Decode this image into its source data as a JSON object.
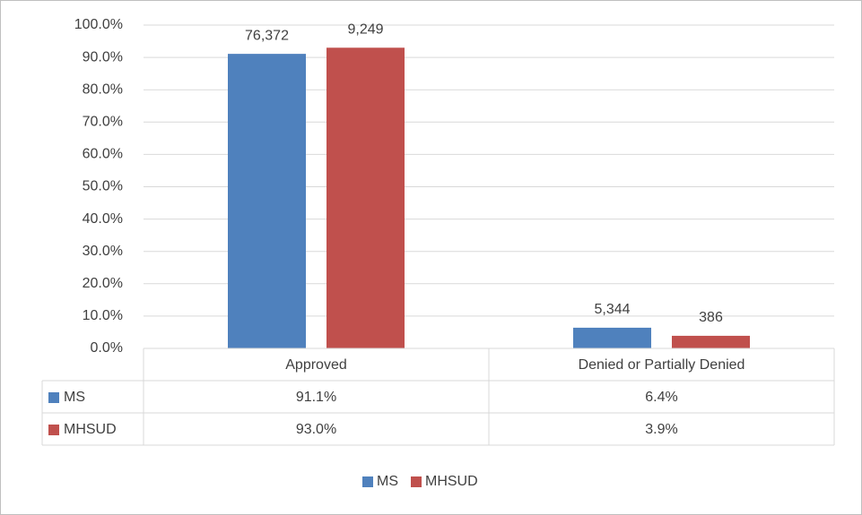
{
  "chart_data": {
    "type": "bar",
    "categories": [
      "Approved",
      "Denied or Partially Denied"
    ],
    "series": [
      {
        "name": "MS",
        "color": "#4f81bd",
        "values": [
          91.1,
          6.4
        ],
        "value_labels": [
          "91.1%",
          "6.4%"
        ],
        "count_labels": [
          "76,372",
          "5,344"
        ]
      },
      {
        "name": "MHSUD",
        "color": "#c0504d",
        "values": [
          93.0,
          3.9
        ],
        "value_labels": [
          "93.0%",
          "3.9%"
        ],
        "count_labels": [
          "9,249",
          "386"
        ]
      }
    ],
    "ylim": [
      0,
      100
    ],
    "yticks": [
      {
        "value": 0,
        "label": "0.0%"
      },
      {
        "value": 10,
        "label": "10.0%"
      },
      {
        "value": 20,
        "label": "20.0%"
      },
      {
        "value": 30,
        "label": "30.0%"
      },
      {
        "value": 40,
        "label": "40.0%"
      },
      {
        "value": 50,
        "label": "50.0%"
      },
      {
        "value": 60,
        "label": "60.0%"
      },
      {
        "value": 70,
        "label": "70.0%"
      },
      {
        "value": 80,
        "label": "80.0%"
      },
      {
        "value": 90,
        "label": "90.0%"
      },
      {
        "value": 100,
        "label": "100.0%"
      }
    ],
    "grid": true,
    "data_table": true,
    "legend": "bottom"
  }
}
